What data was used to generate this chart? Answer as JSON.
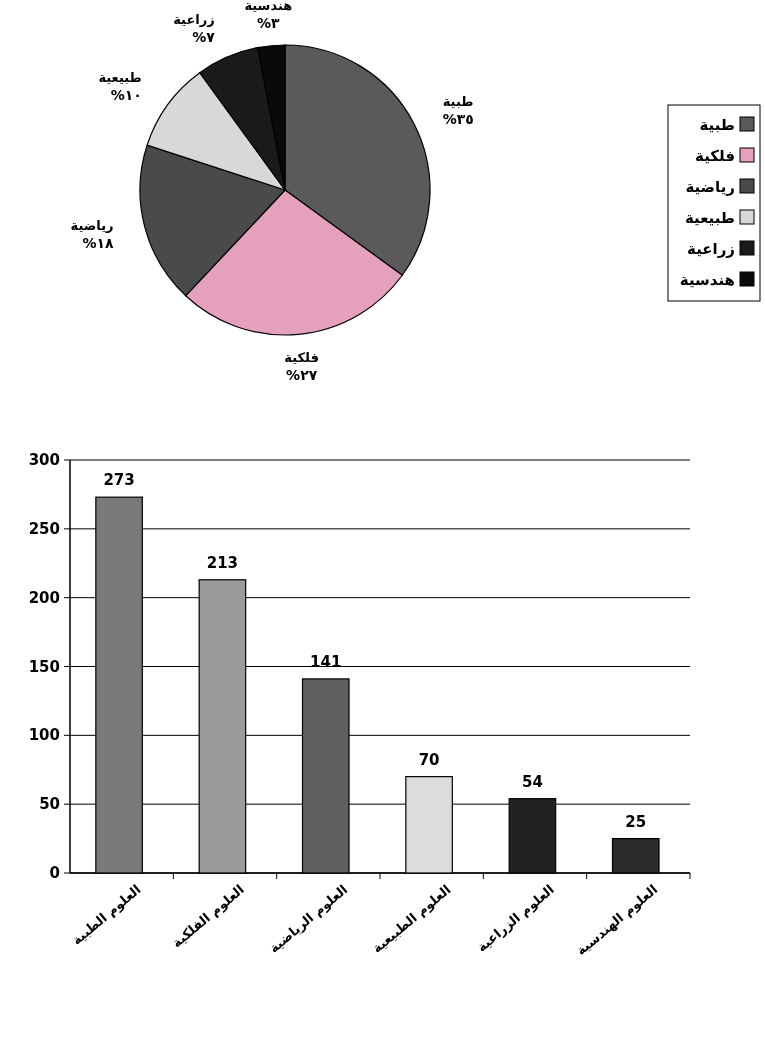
{
  "chart_data": [
    {
      "type": "pie",
      "categories": [
        "طبية",
        "فلكية",
        "رياضية",
        "طبيعية",
        "زراعية",
        "هندسية"
      ],
      "values": [
        35,
        27,
        18,
        10,
        7,
        3
      ],
      "value_labels": [
        "%٣٥",
        "%٢٧",
        "%١٨",
        "%١٠",
        "%٧",
        "%٣"
      ],
      "colors": [
        "#5a5a5a",
        "#e4a0bc",
        "#4a4a4a",
        "#d8d8d8",
        "#1a1a1a",
        "#0a0a0a"
      ],
      "legend": "right"
    },
    {
      "type": "bar",
      "categories": [
        "العلوم الطبية",
        "العلوم الفلكية",
        "العلوم الرياضية",
        "العلوم الطبيعية",
        "العلوم الزراعية",
        "العلوم الهندسية"
      ],
      "values": [
        273,
        213,
        141,
        70,
        54,
        25
      ],
      "colors": [
        "#7a7a7a",
        "#9a9a9a",
        "#606060",
        "#dcdcdc",
        "#222222",
        "#2a2a2a"
      ],
      "ylim": [
        0,
        300
      ],
      "yticks": [
        0,
        50,
        100,
        150,
        200,
        250,
        300
      ],
      "grid": "y",
      "data_labels": true
    }
  ]
}
